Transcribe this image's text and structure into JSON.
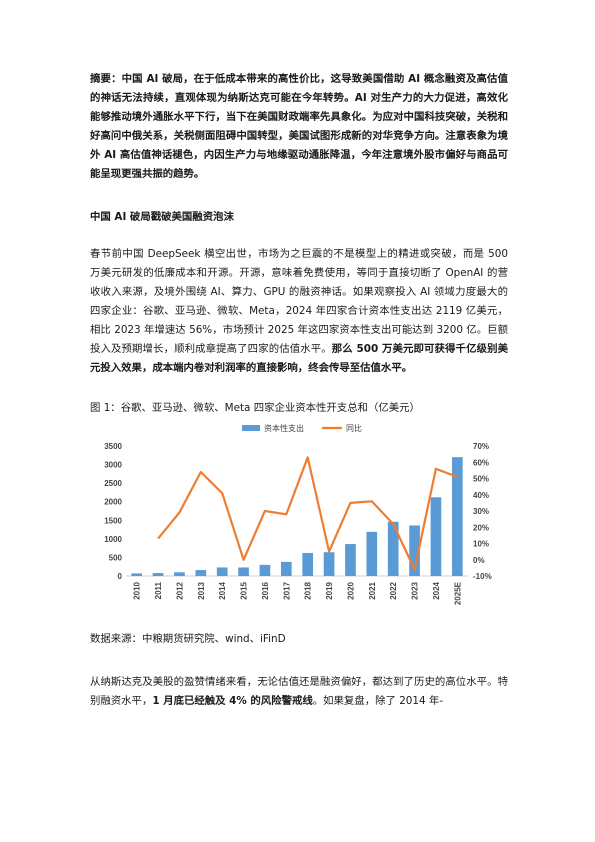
{
  "abstract": {
    "label": "摘要：",
    "text": "中国 AI 破局，在于低成本带来的高性价比，这导致美国借助 AI 概念融资及高估值的神话无法持续，直观体现为纳斯达克可能在今年转势。AI 对生产力的大力促进，高效化能够推动境外通胀水平下行，当下在美国财政端率先具象化。为应对中国科技突破，关税和好高问中俄关系，关税侧面阻碍中国转型，美国试图形成新的对华竞争方向。注意表象为境外 AI 高估值神话褪色，内因生产力与地缘驱动通胀降温，今年注意境外股市偏好与商品可能呈现更强共振的趋势。"
  },
  "section1": {
    "heading": "中国 AI 破局戳破美国融资泡沫",
    "para1_normal": "春节前中国 DeepSeek 横空出世，市场为之巨震的不是模型上的精进或突破，而是 500 万美元研发的低廉成本和开源。开源，意味着免费使用，等同于直接切断了 OpenAI 的营收收入来源，及境外围绕 AI、算力、GPU 的融资神话。如果观察投入 AI 领域力度最大的四家企业：谷歌、亚马逊、微软、Meta，2024 年四家合计资本性支出达 2119 亿美元，相比 2023 年增速达 56%，市场预计 2025 年这四家资本性支出可能达到 3200 亿。巨额投入及预期增长，顺利成章提高了四家的估值水平。",
    "para1_bold": "那么 500 万美元即可获得千亿级别美元投入效果，成本端内卷对利润率的直接影响，终会传导至估值水平。"
  },
  "figure": {
    "title": "图 1：谷歌、亚马逊、微软、Meta 四家企业资本性开支总和（亿美元）",
    "source": "数据来源：中粮期货研究院、wind、iFinD"
  },
  "chart_data": {
    "type": "bar+line",
    "categories": [
      "2010",
      "2011",
      "2012",
      "2013",
      "2014",
      "2015",
      "2016",
      "2017",
      "2018",
      "2019",
      "2020",
      "2021",
      "2022",
      "2023",
      "2024",
      "2025E"
    ],
    "series": [
      {
        "name": "资本性支出",
        "type": "bar",
        "axis": "left",
        "color": "#5b9bd5",
        "values": [
          70,
          80,
          100,
          160,
          230,
          230,
          300,
          380,
          620,
          640,
          860,
          1190,
          1460,
          1360,
          2119,
          3200
        ]
      },
      {
        "name": "同比",
        "type": "line",
        "axis": "right",
        "color": "#ed7d31",
        "values": [
          null,
          13,
          29,
          54,
          41,
          0,
          30,
          28,
          63,
          5,
          35,
          36,
          22,
          -6,
          56,
          51
        ]
      }
    ],
    "yLeft": {
      "min": 0,
      "max": 3500,
      "step": 500,
      "ticks": [
        "0",
        "500",
        "1000",
        "1500",
        "2000",
        "2500",
        "3000",
        "3500"
      ]
    },
    "yRight": {
      "min": -10,
      "max": 70,
      "step": 10,
      "ticks": [
        "-10%",
        "0%",
        "10%",
        "20%",
        "30%",
        "40%",
        "50%",
        "60%",
        "70%"
      ]
    },
    "legend_position": "top-center",
    "grid": false
  },
  "section2": {
    "para_normal": "从纳斯达克及美股的盈赞情绪来看，无论估值还是融资偏好，都达到了历史的高位水平。特别融资水平，",
    "para_bold": "1 月底已经触及 4% 的风险警戒线",
    "para_tail": "。如果复盘，除了 2014 年-"
  }
}
